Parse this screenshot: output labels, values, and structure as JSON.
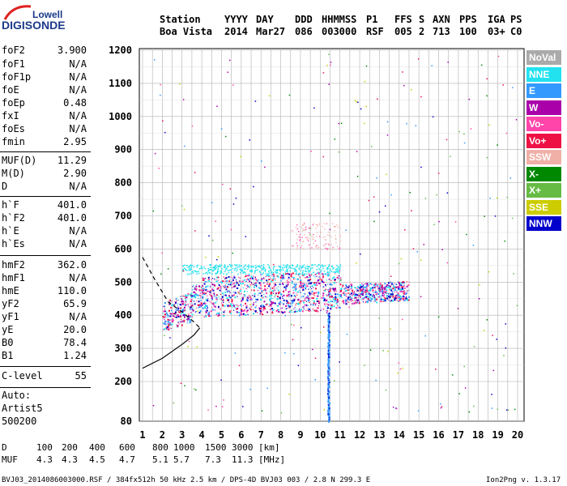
{
  "logo": {
    "top": "Lowell",
    "bottom": "DIGISONDE"
  },
  "header": {
    "row1": [
      "Station",
      "YYYY",
      "DAY",
      "DDD",
      "HHMMSS",
      "P1",
      "FFS",
      "S",
      "AXN",
      "PPS",
      "IGA",
      "PS"
    ],
    "row2": [
      "Boa Vista",
      "2014",
      "Mar27",
      "086",
      "003000",
      "RSF",
      "005",
      "2",
      "713",
      "100",
      "03+",
      "C0"
    ]
  },
  "params": [
    {
      "k": "foF2",
      "v": "3.900"
    },
    {
      "k": "foF1",
      "v": "N/A"
    },
    {
      "k": "foF1p",
      "v": "N/A"
    },
    {
      "k": "foE",
      "v": "N/A"
    },
    {
      "k": "foEp",
      "v": "0.48"
    },
    {
      "k": "fxI",
      "v": "N/A"
    },
    {
      "k": "foEs",
      "v": "N/A"
    },
    {
      "k": "fmin",
      "v": "2.95"
    },
    {
      "k": "MUF(D)",
      "v": "11.29"
    },
    {
      "k": "M(D)",
      "v": "2.90"
    },
    {
      "k": "D",
      "v": "N/A"
    },
    {
      "k": "h`F",
      "v": "401.0"
    },
    {
      "k": "h`F2",
      "v": "401.0"
    },
    {
      "k": "h`E",
      "v": "N/A"
    },
    {
      "k": "h`Es",
      "v": "N/A"
    },
    {
      "k": "hmF2",
      "v": "362.0"
    },
    {
      "k": "hmF1",
      "v": "N/A"
    },
    {
      "k": "hmE",
      "v": "110.0"
    },
    {
      "k": "yF2",
      "v": "65.9"
    },
    {
      "k": "yF1",
      "v": "N/A"
    },
    {
      "k": "yE",
      "v": "20.0"
    },
    {
      "k": "B0",
      "v": "78.4"
    },
    {
      "k": "B1",
      "v": "1.24"
    },
    {
      "k": "C-level",
      "v": "55"
    }
  ],
  "auto": [
    "Auto:",
    "Artist5",
    "500200"
  ],
  "legend": [
    {
      "label": "NoVal",
      "color": "#aaaaaa"
    },
    {
      "label": "NNE",
      "color": "#22e2f0"
    },
    {
      "label": "E",
      "color": "#3399ff"
    },
    {
      "label": "W",
      "color": "#aa00aa"
    },
    {
      "label": "Vo-",
      "color": "#ff44aa"
    },
    {
      "label": "Vo+",
      "color": "#ee1144"
    },
    {
      "label": "SSW",
      "color": "#f0b0a8"
    },
    {
      "label": "X-",
      "color": "#008800"
    },
    {
      "label": "X+",
      "color": "#66bb44"
    },
    {
      "label": "SSE",
      "color": "#cccc00"
    },
    {
      "label": "NNW",
      "color": "#0000cc"
    }
  ],
  "chart_data": {
    "type": "scatter",
    "xlim": [
      1,
      20
    ],
    "ylim": [
      80,
      1200
    ],
    "x_ticks": [
      "1",
      "2",
      "3",
      "4",
      "5",
      "6",
      "7",
      "8",
      "9",
      "10",
      "11",
      "12",
      "13",
      "14",
      "15",
      "16",
      "17",
      "18",
      "19",
      "20"
    ],
    "y_ticks": [
      "80",
      "200",
      "300",
      "400",
      "500",
      "600",
      "700",
      "800",
      "900",
      "1000",
      "1100",
      "1200"
    ],
    "grid": true,
    "legend_position": "right",
    "traces": {
      "main_echo_f2_cluster": {
        "x_range": [
          2,
          14.5
        ],
        "y_range": [
          360,
          560
        ],
        "colors": [
          "NNE",
          "E",
          "W",
          "NNW",
          "Vo-",
          "Vo+"
        ]
      },
      "spread_f2_upper": {
        "x_range": [
          8.5,
          11
        ],
        "y_range": [
          600,
          680
        ],
        "colors": [
          "SSW",
          "Vo-"
        ]
      },
      "vertical_streak": {
        "x": 10.4,
        "y_range": [
          80,
          410
        ],
        "color": "E"
      }
    },
    "profile_curve": [
      [
        1.0,
        240
      ],
      [
        2.0,
        270
      ],
      [
        3.0,
        312
      ],
      [
        3.6,
        340
      ],
      [
        3.9,
        362
      ]
    ],
    "dashed_curve": [
      [
        1.0,
        575
      ],
      [
        1.6,
        510
      ],
      [
        2.3,
        440
      ],
      [
        3.0,
        410
      ],
      [
        3.6,
        380
      ],
      [
        3.9,
        362
      ]
    ]
  },
  "bottom": {
    "d_label": "D",
    "d_values": [
      "100",
      "200",
      "400",
      "600",
      "800",
      "1000",
      "1500",
      "3000",
      "[km]"
    ],
    "muf_label": "MUF",
    "muf_values": [
      "4.3",
      "4.3",
      "4.5",
      "4.7",
      "5.1",
      "5.7",
      "7.3",
      "11.3",
      "[MHz]"
    ]
  },
  "footer": {
    "left": "BVJ03_2014086003000.RSF / 384fx512h 50 kHz 2.5 km / DPS-4D BVJ03 003 / 2.8 N 299.3 E",
    "right": "Ion2Png v. 1.3.17"
  }
}
